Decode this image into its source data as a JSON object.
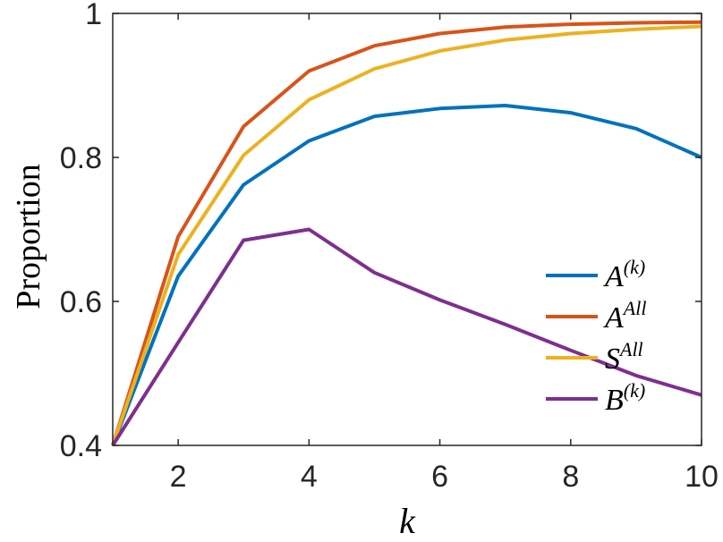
{
  "chart_data": {
    "type": "line",
    "xlabel": "k",
    "ylabel": "Proportion",
    "xlim": [
      1,
      10
    ],
    "ylim": [
      0.4,
      1.0
    ],
    "xticks": [
      2,
      4,
      6,
      8,
      10
    ],
    "yticks": [
      0.4,
      0.6,
      0.8,
      1.0
    ],
    "xtick_labels": [
      "2",
      "4",
      "6",
      "8",
      "10"
    ],
    "ytick_labels": [
      "0.4",
      "0.6",
      "0.8",
      "1"
    ],
    "grid": false,
    "legend_position": "right",
    "x": [
      1,
      2,
      3,
      4,
      5,
      6,
      7,
      8,
      9,
      10
    ],
    "series": [
      {
        "name": "A^(k)",
        "legend_base": "A",
        "legend_sup": "(k)",
        "color": "#0072BD",
        "values": [
          0.4,
          0.635,
          0.762,
          0.823,
          0.857,
          0.868,
          0.872,
          0.862,
          0.84,
          0.8
        ]
      },
      {
        "name": "A^All",
        "legend_base": "A",
        "legend_sup": "All",
        "color": "#D95319",
        "values": [
          0.4,
          0.69,
          0.843,
          0.92,
          0.955,
          0.972,
          0.981,
          0.985,
          0.987,
          0.988
        ]
      },
      {
        "name": "S^All",
        "legend_base": "S",
        "legend_sup": "All",
        "color": "#EDB120",
        "values": [
          0.4,
          0.665,
          0.803,
          0.88,
          0.923,
          0.948,
          0.963,
          0.972,
          0.978,
          0.982
        ]
      },
      {
        "name": "B^(k)",
        "legend_base": "B",
        "legend_sup": "(k)",
        "color": "#7E2F8E",
        "values": [
          0.4,
          0.543,
          0.685,
          0.7,
          0.64,
          0.602,
          0.568,
          0.532,
          0.497,
          0.47
        ]
      }
    ]
  }
}
